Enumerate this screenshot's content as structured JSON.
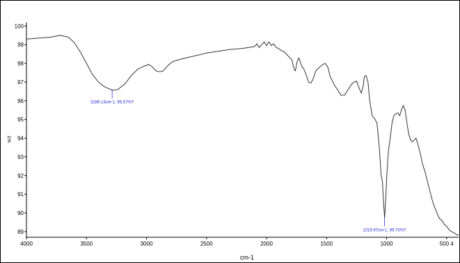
{
  "chart_data": {
    "type": "line",
    "xlabel": "cm-1",
    "ylabel": "%T",
    "xlim": [
      4000,
      400
    ],
    "ylim": [
      88.7,
      100.2
    ],
    "x_ticks": [
      "4000",
      "3500",
      "3000",
      "2500",
      "2000",
      "1500",
      "1000",
      "500 4"
    ],
    "y_ticks": [
      "100",
      "99",
      "98",
      "97",
      "96",
      "95",
      "94",
      "93",
      "92",
      "91",
      "90",
      "89"
    ],
    "grid": false,
    "colors": {
      "line": "#333333",
      "annotation": "#2b2bdc"
    },
    "series": [
      {
        "values": [
          [
            4000,
            99.3
          ],
          [
            3900,
            99.35
          ],
          [
            3800,
            99.4
          ],
          [
            3720,
            99.5
          ],
          [
            3650,
            99.4
          ],
          [
            3600,
            99.1
          ],
          [
            3550,
            98.6
          ],
          [
            3500,
            98.0
          ],
          [
            3450,
            97.4
          ],
          [
            3400,
            97.0
          ],
          [
            3350,
            96.75
          ],
          [
            3286,
            96.57
          ],
          [
            3240,
            96.6
          ],
          [
            3180,
            96.9
          ],
          [
            3120,
            97.4
          ],
          [
            3070,
            97.7
          ],
          [
            3020,
            97.85
          ],
          [
            2980,
            97.95
          ],
          [
            2950,
            97.8
          ],
          [
            2920,
            97.6
          ],
          [
            2890,
            97.55
          ],
          [
            2860,
            97.6
          ],
          [
            2820,
            97.9
          ],
          [
            2780,
            98.1
          ],
          [
            2700,
            98.25
          ],
          [
            2600,
            98.4
          ],
          [
            2500,
            98.55
          ],
          [
            2400,
            98.65
          ],
          [
            2300,
            98.75
          ],
          [
            2200,
            98.8
          ],
          [
            2150,
            98.85
          ],
          [
            2100,
            98.9
          ],
          [
            2080,
            99.05
          ],
          [
            2060,
            98.85
          ],
          [
            2040,
            99.0
          ],
          [
            2020,
            99.15
          ],
          [
            2000,
            98.95
          ],
          [
            1980,
            99.15
          ],
          [
            1960,
            98.95
          ],
          [
            1940,
            99.05
          ],
          [
            1920,
            98.85
          ],
          [
            1900,
            98.8
          ],
          [
            1880,
            98.7
          ],
          [
            1850,
            98.6
          ],
          [
            1820,
            98.4
          ],
          [
            1790,
            98.2
          ],
          [
            1770,
            97.7
          ],
          [
            1760,
            97.6
          ],
          [
            1745,
            98.1
          ],
          [
            1730,
            98.3
          ],
          [
            1710,
            97.9
          ],
          [
            1690,
            97.7
          ],
          [
            1670,
            97.4
          ],
          [
            1650,
            97.0
          ],
          [
            1630,
            96.95
          ],
          [
            1610,
            97.2
          ],
          [
            1590,
            97.6
          ],
          [
            1560,
            97.8
          ],
          [
            1530,
            97.95
          ],
          [
            1510,
            98.0
          ],
          [
            1490,
            97.8
          ],
          [
            1470,
            97.3
          ],
          [
            1440,
            96.9
          ],
          [
            1410,
            96.6
          ],
          [
            1380,
            96.3
          ],
          [
            1350,
            96.3
          ],
          [
            1330,
            96.5
          ],
          [
            1310,
            96.7
          ],
          [
            1290,
            96.9
          ],
          [
            1270,
            97.0
          ],
          [
            1250,
            97.05
          ],
          [
            1230,
            96.7
          ],
          [
            1210,
            96.4
          ],
          [
            1195,
            96.8
          ],
          [
            1185,
            97.3
          ],
          [
            1170,
            97.35
          ],
          [
            1155,
            97.0
          ],
          [
            1140,
            96.0
          ],
          [
            1120,
            95.2
          ],
          [
            1100,
            95.05
          ],
          [
            1080,
            94.8
          ],
          [
            1060,
            93.5
          ],
          [
            1045,
            92.0
          ],
          [
            1035,
            91.7
          ],
          [
            1025,
            90.5
          ],
          [
            1016,
            89.73
          ],
          [
            1008,
            90.6
          ],
          [
            998,
            92.0
          ],
          [
            985,
            93.3
          ],
          [
            970,
            94.0
          ],
          [
            955,
            94.8
          ],
          [
            940,
            95.2
          ],
          [
            925,
            95.3
          ],
          [
            905,
            95.35
          ],
          [
            890,
            95.2
          ],
          [
            875,
            95.55
          ],
          [
            860,
            95.75
          ],
          [
            845,
            95.5
          ],
          [
            830,
            94.8
          ],
          [
            815,
            94.2
          ],
          [
            800,
            93.9
          ],
          [
            785,
            93.8
          ],
          [
            770,
            93.9
          ],
          [
            755,
            94.0
          ],
          [
            740,
            93.7
          ],
          [
            720,
            93.2
          ],
          [
            700,
            92.6
          ],
          [
            680,
            92.2
          ],
          [
            660,
            91.7
          ],
          [
            640,
            91.2
          ],
          [
            620,
            90.7
          ],
          [
            600,
            90.3
          ],
          [
            580,
            90.0
          ],
          [
            560,
            89.7
          ],
          [
            540,
            89.6
          ],
          [
            520,
            89.4
          ],
          [
            500,
            89.3
          ],
          [
            480,
            89.1
          ],
          [
            460,
            89.0
          ],
          [
            440,
            88.95
          ],
          [
            420,
            88.85
          ],
          [
            400,
            88.8
          ]
        ]
      }
    ],
    "annotations": [
      {
        "x": 3286.14,
        "y": 96.57,
        "text": "3286.14cm-1, 96.57%T"
      },
      {
        "x": 1016.97,
        "y": 89.73,
        "text": "1016.97cm-1, 89.73%T"
      }
    ]
  }
}
